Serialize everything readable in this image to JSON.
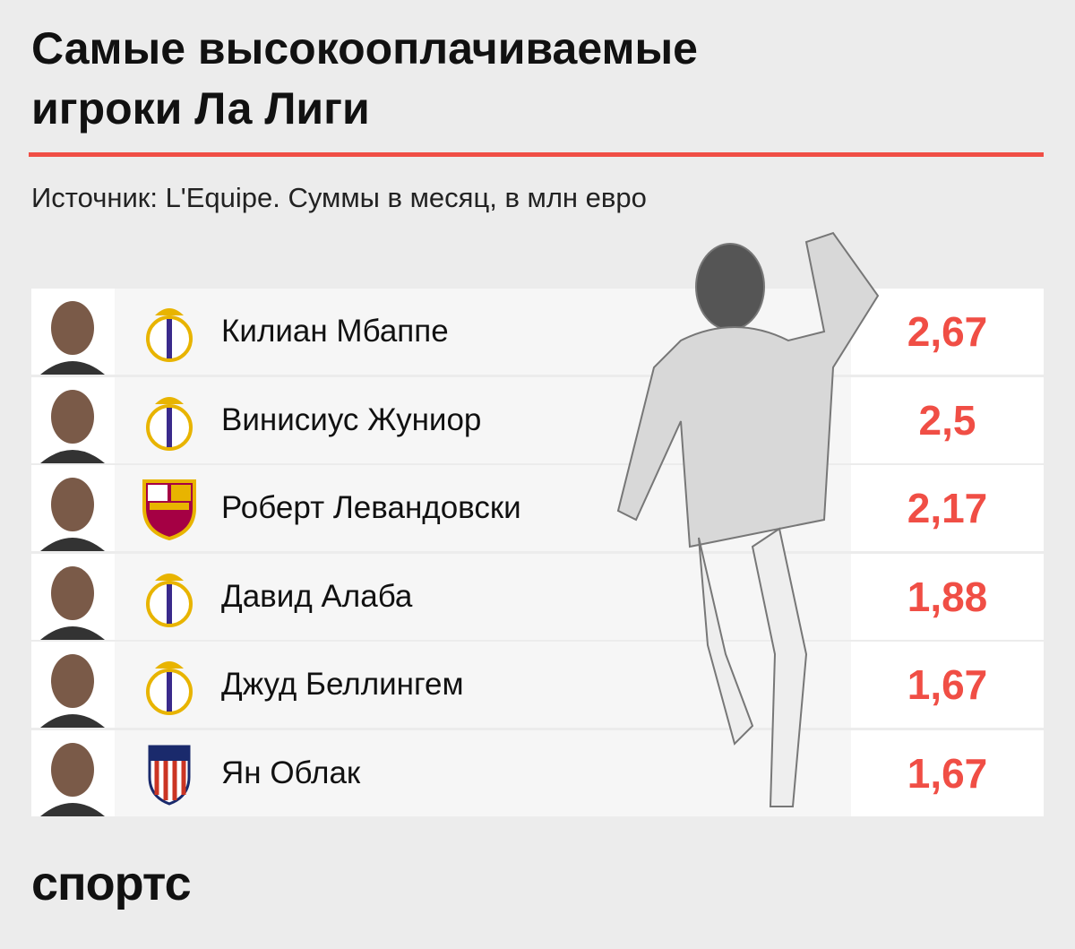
{
  "header": {
    "title_line1": "Самые высокооплачиваемые",
    "title_line2": "игроки Ла Лиги",
    "subtitle": "Источник: L'Equipe. Суммы в месяц, в млн евро"
  },
  "table": {
    "rows": [
      [
        "Килиан Мбаппе",
        "2,67"
      ],
      [
        "Винисиус Жуниор",
        "2,5"
      ],
      [
        "Роберт Левандовски",
        "2,17"
      ],
      [
        "Давид Алаба",
        "1,88"
      ],
      [
        "Джуд Беллингем",
        "1,67"
      ],
      [
        "Ян Облак",
        "1,67"
      ]
    ]
  },
  "footer": {
    "logo": "спортс"
  }
}
